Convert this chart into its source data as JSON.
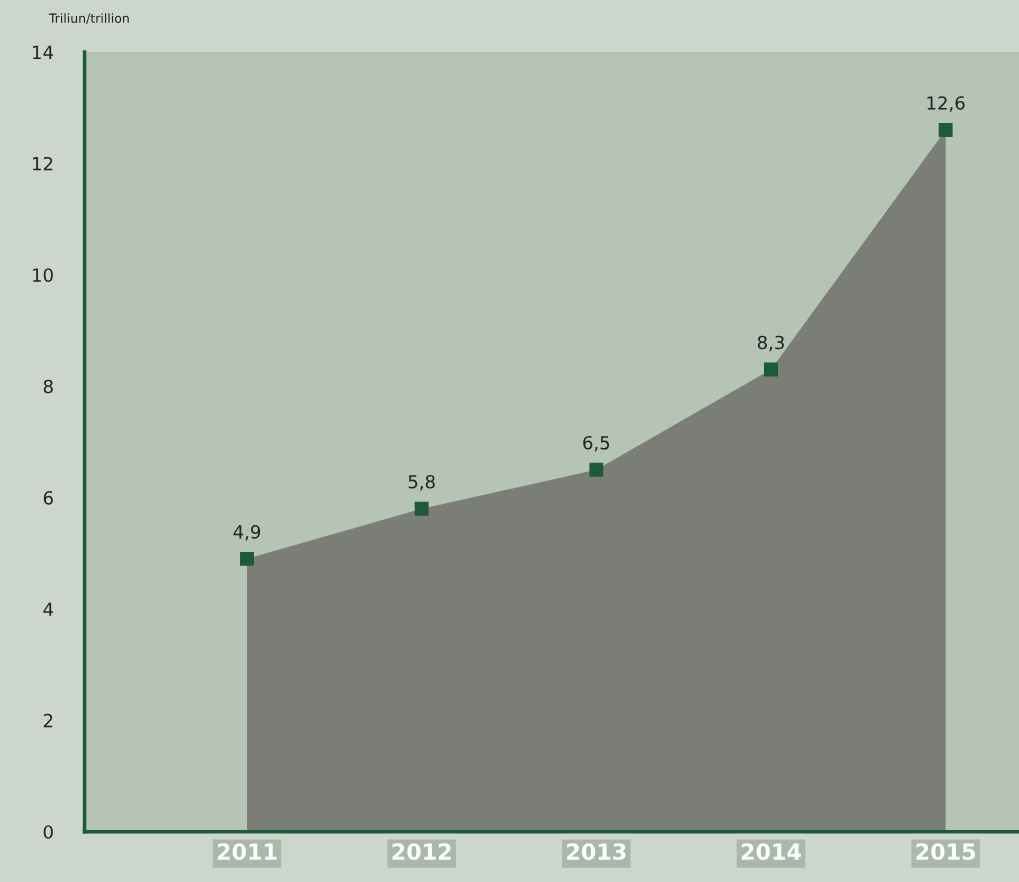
{
  "chart_data": {
    "type": "area",
    "ylabel": "Triliun/trillion",
    "categories": [
      "2011",
      "2012",
      "2013",
      "2014",
      "2015"
    ],
    "series": [
      {
        "color": "#7b7e76",
        "values": [
          4.9,
          5.8,
          6.5,
          8.3,
          12.6
        ],
        "value_labels": [
          "4,9",
          "5,8",
          "6,5",
          "8,3",
          "12,6"
        ]
      }
    ],
    "ylim": [
      0,
      14
    ],
    "yticks": [
      0,
      2,
      4,
      6,
      8,
      10,
      12,
      14
    ],
    "grid": false,
    "marker": "square",
    "legend": false
  }
}
